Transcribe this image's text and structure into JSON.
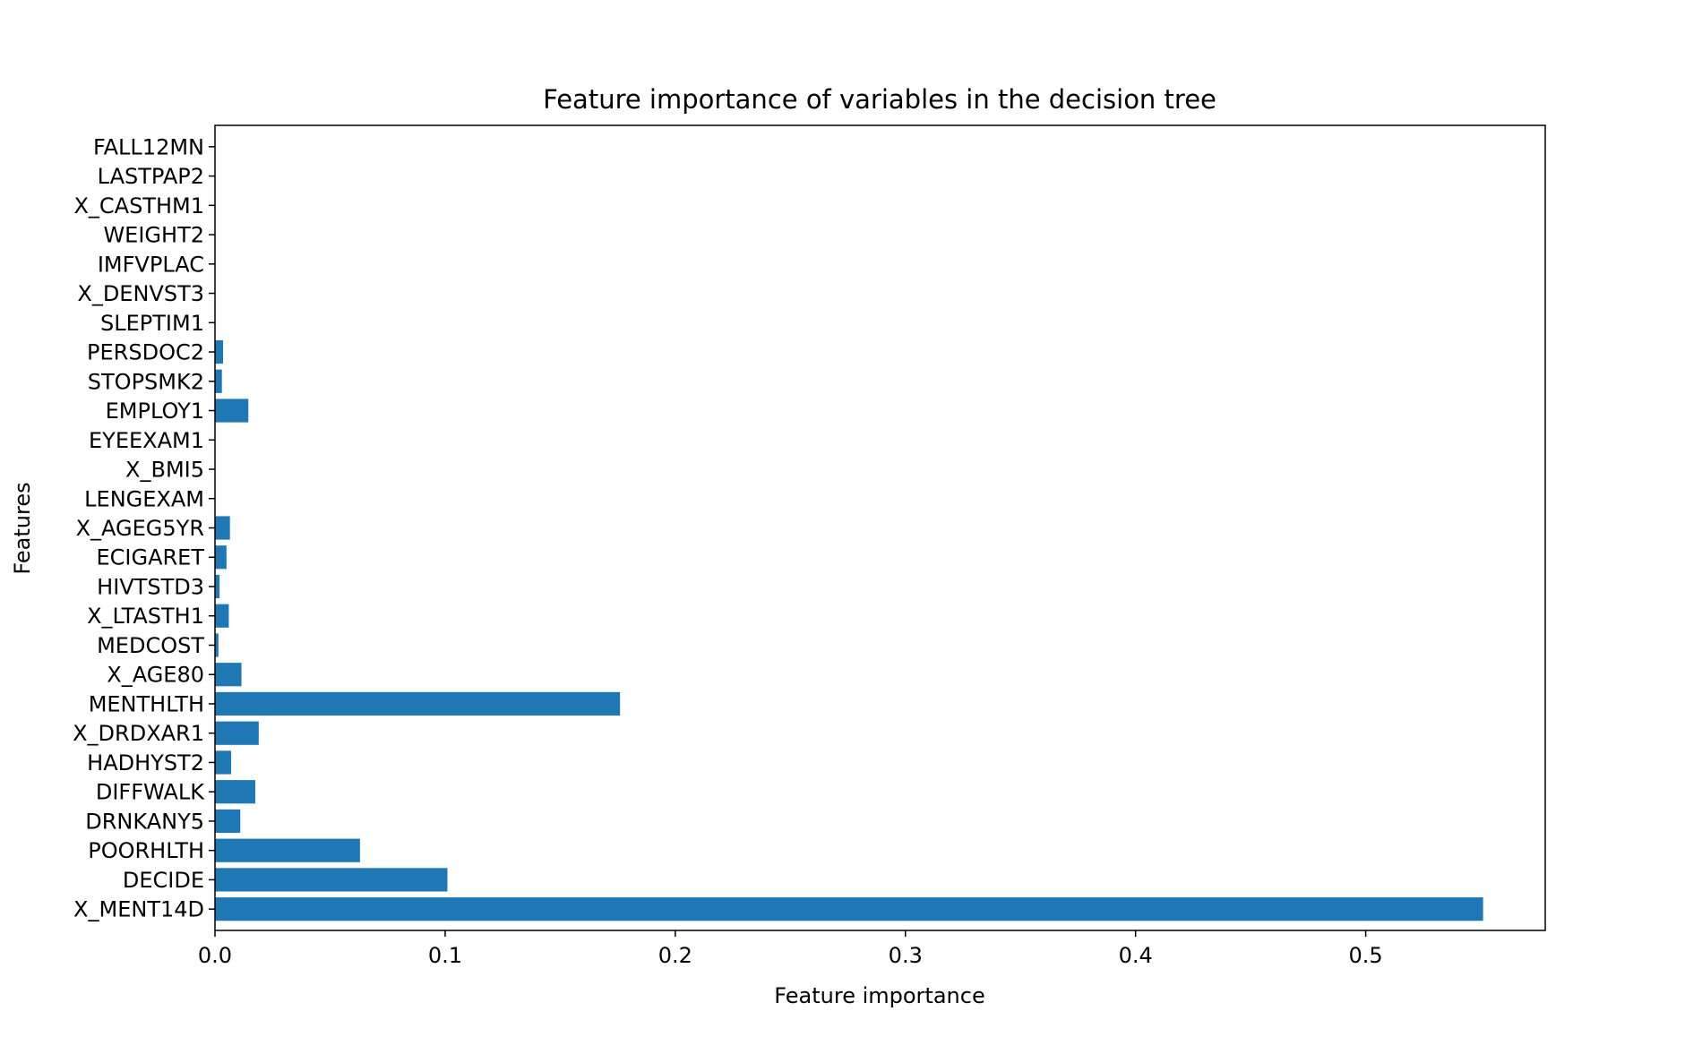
{
  "chart_data": {
    "type": "bar",
    "orientation": "horizontal",
    "title": "Feature importance of variables in the decision tree",
    "xlabel": "Feature importance",
    "ylabel": "Features",
    "xlim": [
      0,
      0.578
    ],
    "xticks": [
      0.0,
      0.1,
      0.2,
      0.3,
      0.4,
      0.5
    ],
    "xtick_labels": [
      "0.0",
      "0.1",
      "0.2",
      "0.3",
      "0.4",
      "0.5"
    ],
    "grid": false,
    "bar_color": "#1f77b4",
    "categories": [
      "X_MENT14D",
      "DECIDE",
      "POORHLTH",
      "DRNKANY5",
      "DIFFWALK",
      "HADHYST2",
      "X_DRDXAR1",
      "MENTHLTH",
      "X_AGE80",
      "MEDCOST",
      "X_LTASTH1",
      "HIVTSTD3",
      "ECIGARET",
      "X_AGEG5YR",
      "LENGEXAM",
      "X_BMI5",
      "EYEEXAM1",
      "EMPLOY1",
      "STOPSMK2",
      "PERSDOC2",
      "SLEPTIM1",
      "X_DENVST3",
      "IMFVPLAC",
      "WEIGHT2",
      "X_CASTHM1",
      "LASTPAP2",
      "FALL12MN"
    ],
    "values": [
      0.551,
      0.101,
      0.063,
      0.011,
      0.0175,
      0.007,
      0.019,
      0.176,
      0.0115,
      0.0015,
      0.006,
      0.002,
      0.005,
      0.0065,
      0.0,
      0.0,
      0.0,
      0.0145,
      0.003,
      0.0035,
      0.0,
      0.0,
      0.0,
      0.0,
      0.0,
      0.0,
      0.0
    ]
  }
}
